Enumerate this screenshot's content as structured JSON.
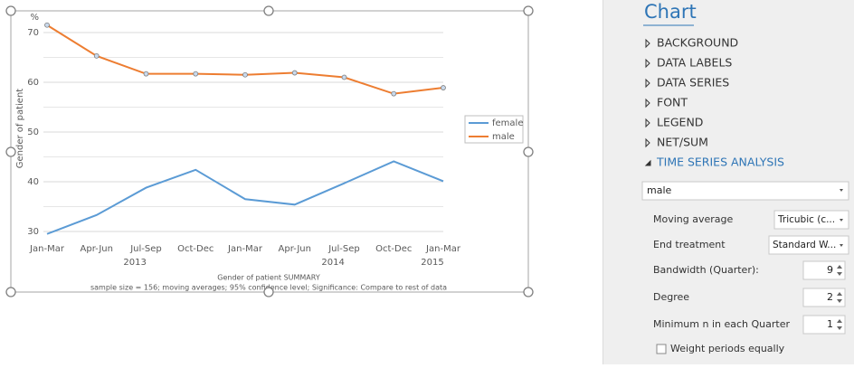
{
  "chart_data": {
    "type": "line",
    "y_unit": "%",
    "y_label": "Gender of patient",
    "categories": [
      "Jan-Mar",
      "Apr-Jun",
      "Jul-Sep",
      "Oct-Dec",
      "Jan-Mar",
      "Apr-Jun",
      "Jul-Sep",
      "Oct-Dec",
      "Jan-Mar"
    ],
    "x_groups": [
      "2013",
      "2014",
      "2015"
    ],
    "series": [
      {
        "name": "female",
        "color": "#5b9bd5",
        "values": [
          29.5,
          33.3,
          38.8,
          42.4,
          36.5,
          35.4,
          39.7,
          44.1,
          40.1
        ]
      },
      {
        "name": "male",
        "color": "#ed7d31",
        "markers": true,
        "values": [
          71.5,
          65.3,
          61.7,
          61.7,
          61.5,
          61.9,
          61.0,
          57.7,
          58.9
        ]
      }
    ],
    "ylim": [
      28.5,
      72
    ],
    "yticks": [
      30,
      40,
      50,
      60,
      70
    ],
    "minor_grid": [
      35,
      45,
      55,
      65
    ],
    "grid": true,
    "legend": "right",
    "footer_title": "Gender of patient SUMMARY",
    "footer_note": "sample size = 156; moving averages; 95% confidence level; Significance: Compare to rest of data"
  },
  "panel": {
    "title": "Chart",
    "sections": [
      {
        "label": "BACKGROUND",
        "expanded": false
      },
      {
        "label": "DATA LABELS",
        "expanded": false
      },
      {
        "label": "DATA SERIES",
        "expanded": false
      },
      {
        "label": "FONT",
        "expanded": false
      },
      {
        "label": "LEGEND",
        "expanded": false
      },
      {
        "label": "NET/SUM",
        "expanded": false
      },
      {
        "label": "TIME SERIES ANALYSIS",
        "expanded": true
      }
    ],
    "series_select": "male",
    "settings": [
      {
        "label": "Moving average",
        "control": "dropdown",
        "value": "Tricubic (c..."
      },
      {
        "label": "End treatment",
        "control": "dropdown",
        "value": "Standard W..."
      },
      {
        "label": "Bandwidth (Quarter):",
        "control": "spinner",
        "value": 9
      },
      {
        "label": "Degree",
        "control": "spinner",
        "value": 2
      },
      {
        "label": "Minimum n in each Quarter",
        "control": "spinner",
        "value": 1
      }
    ],
    "checkbox": {
      "label": "Weight periods equally",
      "checked": false
    }
  }
}
